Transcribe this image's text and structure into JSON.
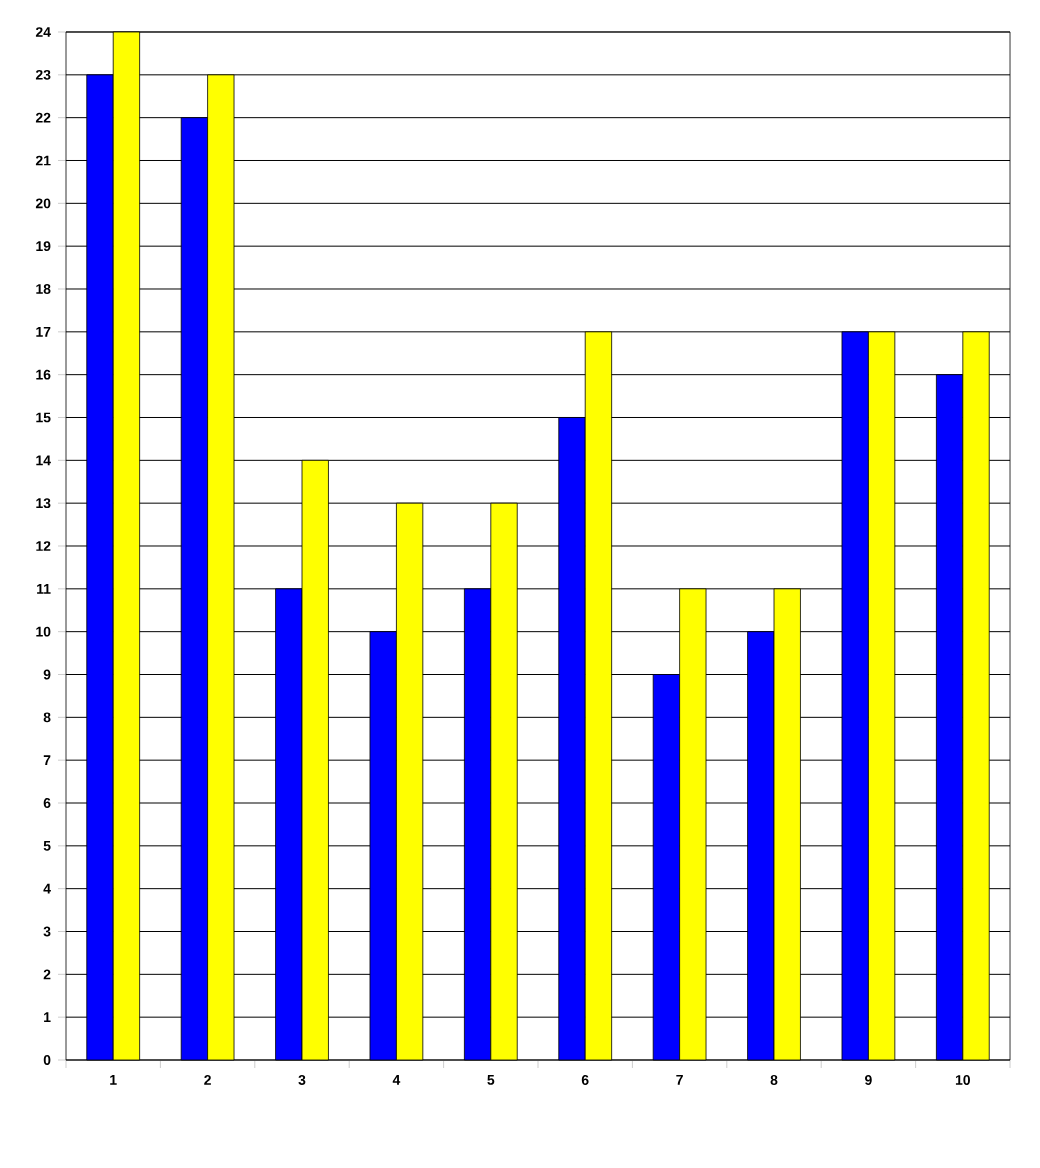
{
  "chart_data": {
    "type": "bar",
    "categories": [
      "1",
      "2",
      "3",
      "4",
      "5",
      "6",
      "7",
      "8",
      "9",
      "10"
    ],
    "series": [
      {
        "color": "#0000ff",
        "values": [
          23,
          22,
          11,
          10,
          11,
          15,
          9,
          10,
          17,
          16
        ]
      },
      {
        "color": "#ffff00",
        "values": [
          24,
          23,
          14,
          13,
          13,
          17,
          11,
          11,
          17,
          17
        ]
      }
    ],
    "ylim": [
      0,
      24
    ],
    "yticks": [
      0,
      1,
      2,
      3,
      4,
      5,
      6,
      7,
      8,
      9,
      10,
      11,
      12,
      13,
      14,
      15,
      16,
      17,
      18,
      19,
      20,
      21,
      22,
      23,
      24
    ],
    "grid": "y"
  }
}
